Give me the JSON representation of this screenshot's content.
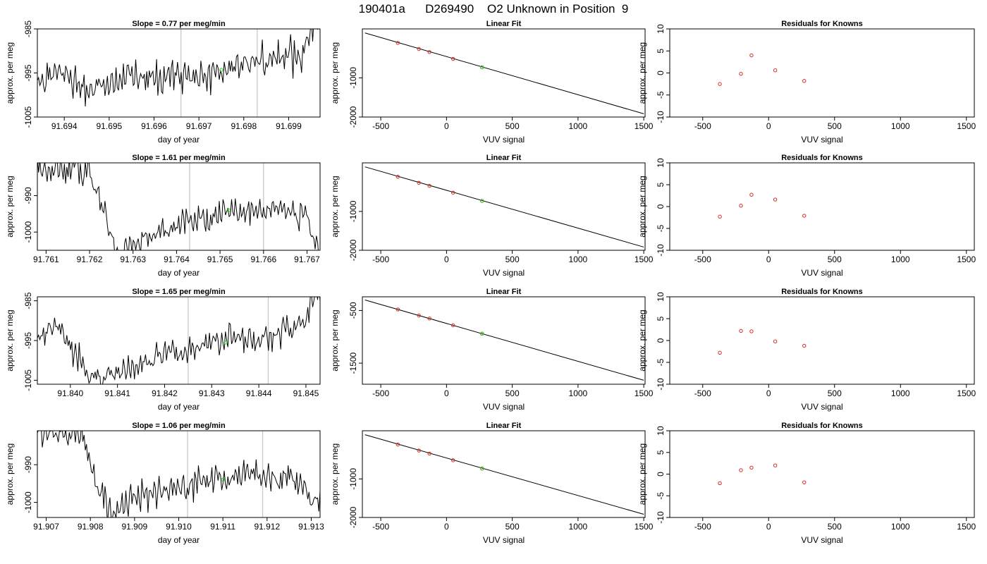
{
  "title": "190401a      D269490    O2 Unknown in Position  9",
  "colors": {
    "trace": "#000000",
    "frame": "#000000",
    "vline": "#c8c8c8",
    "known": "#d62b1e",
    "unknown": "#22cc22"
  },
  "chart_data": [
    {
      "row": 0,
      "panel": "trace",
      "type": "line",
      "title": "Slope =  0.77  per meg/min",
      "xlabel": "day of year",
      "ylabel": "approx. per meg",
      "xlim": [
        91.6934,
        91.6997
      ],
      "ylim": [
        -1005,
        -985
      ],
      "xticks": [
        91.694,
        91.695,
        91.696,
        91.697,
        91.698,
        91.699
      ],
      "xtick_labels": [
        "91.694",
        "91.695",
        "91.696",
        "91.697",
        "91.698",
        "91.699"
      ],
      "yticks": [
        -1005,
        -995,
        -985
      ],
      "ytick_labels": [
        "-1005",
        "-995",
        "-985"
      ],
      "vlines": [
        91.6966,
        91.6983
      ],
      "trend": [
        [
          91.6935,
          -997.5
        ],
        [
          91.694,
          -994.0
        ],
        [
          91.6945,
          -999.0
        ],
        [
          91.695,
          -997.8
        ],
        [
          91.6955,
          -996.5
        ],
        [
          91.696,
          -995.8
        ],
        [
          91.6965,
          -995.0
        ],
        [
          91.697,
          -996.0
        ],
        [
          91.6975,
          -994.5
        ],
        [
          91.698,
          -993.3
        ],
        [
          91.6985,
          -992.5
        ],
        [
          91.699,
          -991.5
        ],
        [
          91.6993,
          -991.0
        ],
        [
          91.6996,
          -982.0
        ]
      ],
      "unknown_point": [
        91.6975,
        -994.3
      ]
    },
    {
      "row": 0,
      "panel": "fit",
      "type": "scatter",
      "title": "Linear Fit",
      "xlabel": "VUV signal",
      "ylabel": "approx. per meg",
      "xlim": [
        -640,
        1510
      ],
      "ylim": [
        -2000,
        250
      ],
      "xticks": [
        -500,
        0,
        500,
        1000,
        1500
      ],
      "xtick_labels": [
        "-500",
        "0",
        "500",
        "1000",
        "1500"
      ],
      "yticks": [
        -2000,
        -1000
      ],
      "ytick_labels": [
        "-2000",
        "-1000"
      ],
      "fit_line": [
        [
          -620,
          147
        ],
        [
          1500,
          -1917
        ]
      ],
      "knowns": [
        [
          -370,
          -107
        ],
        [
          -210,
          -263
        ],
        [
          -130,
          -341
        ],
        [
          50,
          -516
        ],
        [
          270,
          -730
        ]
      ],
      "unknown_point": [
        270,
        -730
      ]
    },
    {
      "row": 0,
      "panel": "resid",
      "type": "scatter",
      "title": "Residuals for Knowns",
      "xlabel": "VUV signal",
      "ylabel": "approx. per meg",
      "xlim": [
        -750,
        1560
      ],
      "ylim": [
        -10,
        10
      ],
      "xticks": [
        -500,
        0,
        500,
        1000,
        1500
      ],
      "xtick_labels": [
        "-500",
        "0",
        "500",
        "1000",
        "1500"
      ],
      "yticks": [
        -10,
        -5,
        0,
        5,
        10
      ],
      "ytick_labels": [
        "-10",
        "-5",
        "0",
        "5",
        "10"
      ],
      "knowns": [
        [
          -370,
          -2.5
        ],
        [
          -210,
          -0.2
        ],
        [
          -130,
          4.0
        ],
        [
          50,
          0.6
        ],
        [
          270,
          -1.8
        ]
      ]
    },
    {
      "row": 1,
      "panel": "trace",
      "type": "line",
      "title": "Slope =  1.61  per meg/min",
      "xlabel": "day of year",
      "ylabel": "approx. per meg",
      "xlim": [
        91.7608,
        91.7673
      ],
      "ylim": [
        -1005,
        -981
      ],
      "xticks": [
        91.761,
        91.762,
        91.763,
        91.764,
        91.765,
        91.766,
        91.767
      ],
      "xtick_labels": [
        "91.761",
        "91.762",
        "91.763",
        "91.764",
        "91.765",
        "91.766",
        "91.767"
      ],
      "yticks": [
        -1000,
        -990
      ],
      "ytick_labels": [
        "-1000",
        "-990"
      ],
      "vlines": [
        91.7643,
        91.766
      ],
      "trend": [
        [
          91.762,
          -983.0
        ],
        [
          91.7625,
          -1000.0
        ],
        [
          91.7627,
          -1006.0
        ],
        [
          91.763,
          -1003.0
        ],
        [
          91.7635,
          -1000.0
        ],
        [
          91.764,
          -998.0
        ],
        [
          91.7645,
          -996.5
        ],
        [
          91.765,
          -995.0
        ],
        [
          91.7655,
          -993.5
        ],
        [
          91.766,
          -994.5
        ],
        [
          91.7665,
          -993.0
        ],
        [
          91.767,
          -995.0
        ],
        [
          91.7672,
          -1005.0
        ]
      ],
      "unknown_point": [
        91.7652,
        -994.0
      ]
    },
    {
      "row": 1,
      "panel": "fit",
      "type": "scatter",
      "title": "Linear Fit",
      "xlabel": "VUV signal",
      "ylabel": "approx. per meg",
      "xlim": [
        -640,
        1510
      ],
      "ylim": [
        -2000,
        250
      ],
      "xticks": [
        -500,
        0,
        500,
        1000,
        1500
      ],
      "xtick_labels": [
        "-500",
        "0",
        "500",
        "1000",
        "1500"
      ],
      "yticks": [
        -2000,
        -1000
      ],
      "ytick_labels": [
        "-2000",
        "-1000"
      ],
      "fit_line": [
        [
          -620,
          147
        ],
        [
          1500,
          -1917
        ]
      ],
      "knowns": [
        [
          -370,
          -107
        ],
        [
          -210,
          -263
        ],
        [
          -130,
          -341
        ],
        [
          50,
          -516
        ],
        [
          270,
          -730
        ]
      ],
      "unknown_point": [
        270,
        -730
      ]
    },
    {
      "row": 1,
      "panel": "resid",
      "type": "scatter",
      "title": "Residuals for Knowns",
      "xlabel": "VUV signal",
      "ylabel": "approx. per meg",
      "xlim": [
        -750,
        1560
      ],
      "ylim": [
        -10,
        10
      ],
      "xticks": [
        -500,
        0,
        500,
        1000,
        1500
      ],
      "xtick_labels": [
        "-500",
        "0",
        "500",
        "1000",
        "1500"
      ],
      "yticks": [
        -10,
        -5,
        0,
        5,
        10
      ],
      "ytick_labels": [
        "-10",
        "-5",
        "0",
        "5",
        "10"
      ],
      "knowns": [
        [
          -370,
          -2.3
        ],
        [
          -210,
          0.2
        ],
        [
          -130,
          2.7
        ],
        [
          50,
          1.6
        ],
        [
          270,
          -2.1
        ]
      ]
    },
    {
      "row": 2,
      "panel": "trace",
      "type": "line",
      "title": "Slope =  1.65  per meg/min",
      "xlabel": "day of year",
      "ylabel": "approx. per meg",
      "xlim": [
        91.8393,
        91.8453
      ],
      "ylim": [
        -1006,
        -984
      ],
      "xticks": [
        91.84,
        91.841,
        91.842,
        91.843,
        91.844,
        91.845
      ],
      "xtick_labels": [
        "91.840",
        "91.841",
        "91.842",
        "91.843",
        "91.844",
        "91.845"
      ],
      "yticks": [
        -1005,
        -995,
        -985
      ],
      "ytick_labels": [
        "-1005",
        "-995",
        "-985"
      ],
      "vlines": [
        91.8425,
        91.8442
      ],
      "trend": [
        [
          91.8394,
          -994.0
        ],
        [
          91.8397,
          -991.5
        ],
        [
          91.84,
          -996.0
        ],
        [
          91.8403,
          -1003.0
        ],
        [
          91.8406,
          -1004.5
        ],
        [
          91.841,
          -1002.5
        ],
        [
          91.8415,
          -1000.5
        ],
        [
          91.842,
          -998.5
        ],
        [
          91.8425,
          -997.0
        ],
        [
          91.843,
          -995.5
        ],
        [
          91.8435,
          -994.0
        ],
        [
          91.844,
          -994.5
        ],
        [
          91.8445,
          -993.0
        ],
        [
          91.845,
          -991.0
        ],
        [
          91.8452,
          -983.0
        ]
      ],
      "unknown_point": [
        91.8433,
        -995.5
      ]
    },
    {
      "row": 2,
      "panel": "fit",
      "type": "scatter",
      "title": "Linear Fit",
      "xlabel": "VUV signal",
      "ylabel": "approx. per meg",
      "xlim": [
        -640,
        1510
      ],
      "ylim": [
        -1900,
        -240
      ],
      "xticks": [
        -500,
        0,
        500,
        1000,
        1500
      ],
      "xtick_labels": [
        "-500",
        "0",
        "500",
        "1000",
        "1500"
      ],
      "yticks": [
        -1500,
        -500
      ],
      "ytick_labels": [
        "-1500",
        "-500"
      ],
      "fit_line": [
        [
          -620,
          -300
        ],
        [
          1500,
          -1825
        ]
      ],
      "knowns": [
        [
          -370,
          -480
        ],
        [
          -210,
          -595
        ],
        [
          -130,
          -652
        ],
        [
          50,
          -782
        ],
        [
          270,
          -940
        ]
      ],
      "unknown_point": [
        270,
        -940
      ]
    },
    {
      "row": 2,
      "panel": "resid",
      "type": "scatter",
      "title": "Residuals for Knowns",
      "xlabel": "VUV signal",
      "ylabel": "approx. per meg",
      "xlim": [
        -750,
        1560
      ],
      "ylim": [
        -10,
        10
      ],
      "xticks": [
        -500,
        0,
        500,
        1000,
        1500
      ],
      "xtick_labels": [
        "-500",
        "0",
        "500",
        "1000",
        "1500"
      ],
      "yticks": [
        -10,
        -5,
        0,
        5,
        10
      ],
      "ytick_labels": [
        "-10",
        "-5",
        "0",
        "5",
        "10"
      ],
      "knowns": [
        [
          -370,
          -2.8
        ],
        [
          -210,
          2.2
        ],
        [
          -130,
          2.1
        ],
        [
          50,
          -0.2
        ],
        [
          270,
          -1.2
        ]
      ]
    },
    {
      "row": 3,
      "panel": "trace",
      "type": "line",
      "title": "Slope =  1.06  per meg/min",
      "xlabel": "day of year",
      "ylabel": "approx. per meg",
      "xlim": [
        91.9068,
        91.9132
      ],
      "ylim": [
        -1004,
        -981
      ],
      "xticks": [
        91.907,
        91.908,
        91.909,
        91.91,
        91.911,
        91.912,
        91.913
      ],
      "xtick_labels": [
        "91.907",
        "91.908",
        "91.909",
        "91.910",
        "91.911",
        "91.912",
        "91.913"
      ],
      "yticks": [
        -1000,
        -990
      ],
      "ytick_labels": [
        "-1000",
        "-990"
      ],
      "vlines": [
        91.9102,
        91.9119
      ],
      "trend": [
        [
          91.9078,
          -982.0
        ],
        [
          91.9082,
          -997.0
        ],
        [
          91.9085,
          -1003.0
        ],
        [
          91.909,
          -999.0
        ],
        [
          91.9095,
          -997.5
        ],
        [
          91.91,
          -996.5
        ],
        [
          91.9105,
          -994.5
        ],
        [
          91.911,
          -993.5
        ],
        [
          91.9115,
          -993.0
        ],
        [
          91.912,
          -994.0
        ],
        [
          91.9125,
          -993.8
        ],
        [
          91.9129,
          -997.0
        ],
        [
          91.913,
          -1000.0
        ]
      ],
      "unknown_point": [
        91.911,
        -994.0
      ]
    },
    {
      "row": 3,
      "panel": "fit",
      "type": "scatter",
      "title": "Linear Fit",
      "xlabel": "VUV signal",
      "ylabel": "approx. per meg",
      "xlim": [
        -640,
        1510
      ],
      "ylim": [
        -2000,
        250
      ],
      "xticks": [
        -500,
        0,
        500,
        1000,
        1500
      ],
      "xtick_labels": [
        "-500",
        "0",
        "500",
        "1000",
        "1500"
      ],
      "yticks": [
        -2000,
        -1000
      ],
      "ytick_labels": [
        "-2000",
        "-1000"
      ],
      "fit_line": [
        [
          -620,
          147
        ],
        [
          1500,
          -1917
        ]
      ],
      "knowns": [
        [
          -370,
          -107
        ],
        [
          -210,
          -263
        ],
        [
          -130,
          -341
        ],
        [
          50,
          -516
        ],
        [
          270,
          -730
        ]
      ],
      "unknown_point": [
        270,
        -730
      ]
    },
    {
      "row": 3,
      "panel": "resid",
      "type": "scatter",
      "title": "Residuals for Knowns",
      "xlabel": "VUV signal",
      "ylabel": "approx. per meg",
      "xlim": [
        -750,
        1560
      ],
      "ylim": [
        -10,
        10
      ],
      "xticks": [
        -500,
        0,
        500,
        1000,
        1500
      ],
      "xtick_labels": [
        "-500",
        "0",
        "500",
        "1000",
        "1500"
      ],
      "yticks": [
        -10,
        -5,
        0,
        5,
        10
      ],
      "ytick_labels": [
        "-10",
        "-5",
        "0",
        "5",
        "10"
      ],
      "knowns": [
        [
          -370,
          -2.1
        ],
        [
          -210,
          0.9
        ],
        [
          -130,
          1.5
        ],
        [
          50,
          2.0
        ],
        [
          270,
          -1.9
        ]
      ]
    }
  ]
}
